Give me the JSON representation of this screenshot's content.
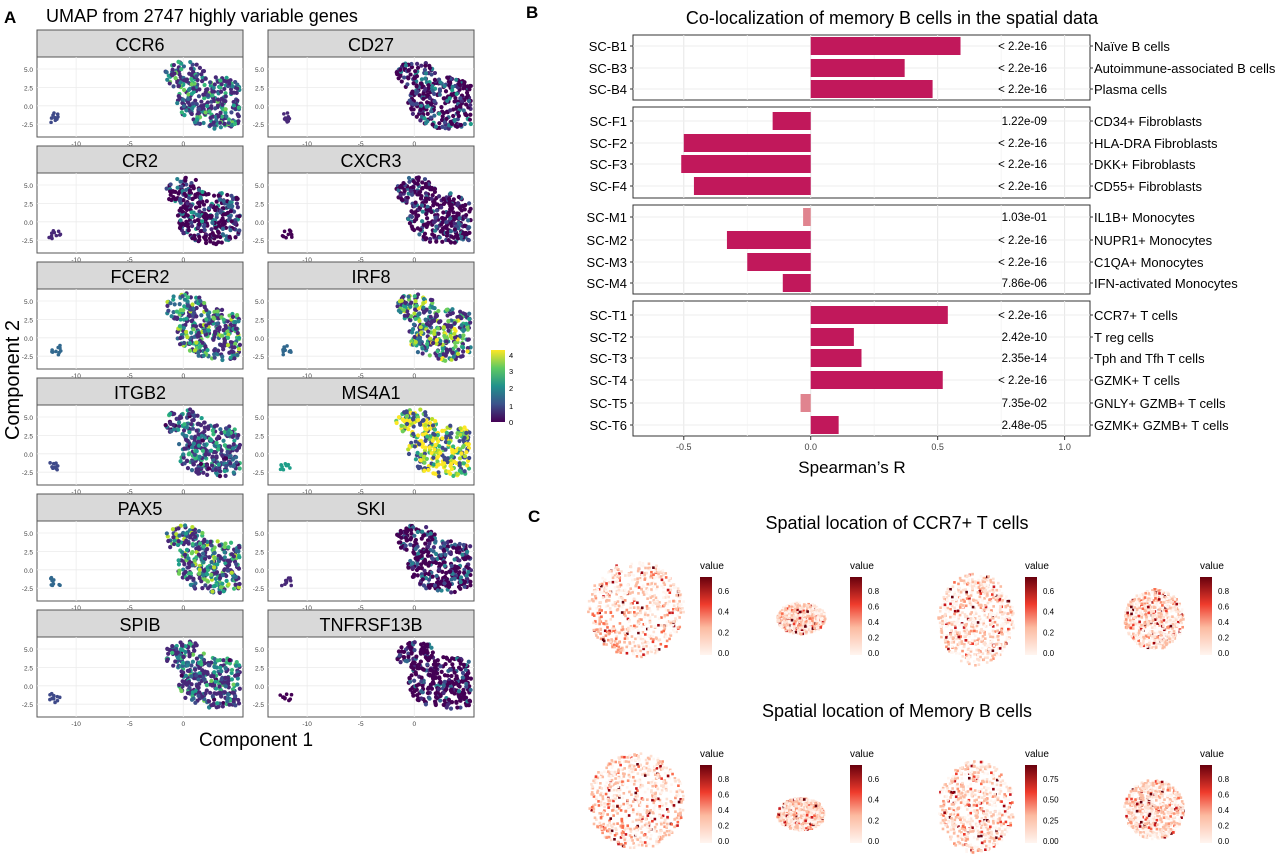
{
  "panel_a": {
    "letter": "A",
    "title": "UMAP from 2747 highly variable genes",
    "xlabel": "Component 1",
    "ylabel": "Component 2",
    "genes": [
      "CCR6",
      "CD27",
      "CR2",
      "CXCR3",
      "FCER2",
      "IRF8",
      "ITGB2",
      "MS4A1",
      "PAX5",
      "SKI",
      "SPIB",
      "TNFRSF13B"
    ],
    "x_ticks": [
      "-10",
      "-5",
      "0"
    ],
    "y_ticks": [
      "5.0",
      "2.5",
      "0.0",
      "-2.5"
    ],
    "colorbar_ticks": [
      "4",
      "3",
      "2",
      "1",
      "0"
    ],
    "gene_mean_expression": {
      "CCR6": 1.8,
      "CD27": 0.9,
      "CR2": 0.9,
      "CXCR3": 0.5,
      "FCER2": 2.2,
      "IRF8": 2.5,
      "ITGB2": 1.5,
      "MS4A1": 3.6,
      "PAX5": 2.3,
      "SKI": 0.7,
      "SPIB": 1.6,
      "TNFRSF13B": 0.5
    },
    "colors": {
      "low": "#440154",
      "mid": "#21918c",
      "high": "#fde725"
    }
  },
  "panel_b": {
    "letter": "B",
    "title": "Co-localization of memory B cells in the spatial data",
    "xlabel": "Spearman’s R",
    "x_ticks": [
      "-0.5",
      "0.0",
      "0.5",
      "1.0"
    ],
    "colors": {
      "bar": "#c1185b",
      "bar_light": "#e0848f"
    }
  },
  "panel_c": {
    "letter": "C",
    "row_titles": [
      "Spatial location of CCR7+ T cells",
      "Spatial location of Memory B cells"
    ],
    "legend_title": "value",
    "legends": [
      [
        [
          "0.6",
          "0.4",
          "0.2",
          "0.0"
        ],
        [
          "0.8",
          "0.6",
          "0.4",
          "0.2",
          "0.0"
        ],
        [
          "0.6",
          "0.4",
          "0.2",
          "0.0"
        ],
        [
          "0.8",
          "0.6",
          "0.4",
          "0.2",
          "0.0"
        ]
      ],
      [
        [
          "0.8",
          "0.6",
          "0.4",
          "0.2",
          "0.0"
        ],
        [
          "0.6",
          "0.4",
          "0.2",
          "0.0"
        ],
        [
          "0.75",
          "0.50",
          "0.25",
          "0.00"
        ],
        [
          "0.8",
          "0.6",
          "0.4",
          "0.2",
          "0.0"
        ]
      ]
    ],
    "colors": {
      "low": "#fff5f0",
      "high": "#67000d"
    }
  },
  "chart_data": [
    {
      "type": "bar",
      "title": "Co-localization of memory B cells in the spatial data",
      "xlabel": "Spearman’s R",
      "xlim": [
        -0.7,
        1.1
      ],
      "orientation": "horizontal",
      "groups": [
        {
          "rows": [
            {
              "id": "SC-B1",
              "label": "Naïve B cells",
              "value": 0.59,
              "p": "< 2.2e-16"
            },
            {
              "id": "SC-B3",
              "label": "Autoimmune-associated B cells",
              "value": 0.37,
              "p": "< 2.2e-16"
            },
            {
              "id": "SC-B4",
              "label": "Plasma cells",
              "value": 0.48,
              "p": "< 2.2e-16"
            }
          ]
        },
        {
          "rows": [
            {
              "id": "SC-F1",
              "label": "CD34+ Fibroblasts",
              "value": -0.15,
              "p": "1.22e-09"
            },
            {
              "id": "SC-F2",
              "label": "HLA-DRA Fibroblasts",
              "value": -0.5,
              "p": "< 2.2e-16"
            },
            {
              "id": "SC-F3",
              "label": "DKK+ Fibroblasts",
              "value": -0.51,
              "p": "< 2.2e-16"
            },
            {
              "id": "SC-F4",
              "label": "CD55+ Fibroblasts",
              "value": -0.46,
              "p": "< 2.2e-16"
            }
          ]
        },
        {
          "rows": [
            {
              "id": "SC-M1",
              "label": "IL1B+ Monocytes",
              "value": -0.03,
              "p": "1.03e-01"
            },
            {
              "id": "SC-M2",
              "label": "NUPR1+ Monocytes",
              "value": -0.33,
              "p": "< 2.2e-16"
            },
            {
              "id": "SC-M3",
              "label": "C1QA+ Monocytes",
              "value": -0.25,
              "p": "< 2.2e-16"
            },
            {
              "id": "SC-M4",
              "label": "IFN-activated Monocytes",
              "value": -0.11,
              "p": "7.86e-06"
            }
          ]
        },
        {
          "rows": [
            {
              "id": "SC-T1",
              "label": "CCR7+ T cells",
              "value": 0.54,
              "p": "< 2.2e-16"
            },
            {
              "id": "SC-T2",
              "label": "T reg cells",
              "value": 0.17,
              "p": "2.42e-10"
            },
            {
              "id": "SC-T3",
              "label": "Tph and Tfh T cells",
              "value": 0.2,
              "p": "2.35e-14"
            },
            {
              "id": "SC-T4",
              "label": "GZMK+ T cells",
              "value": 0.52,
              "p": "< 2.2e-16"
            },
            {
              "id": "SC-T5",
              "label": "GNLY+ GZMB+ T cells",
              "value": -0.04,
              "p": "7.35e-02"
            },
            {
              "id": "SC-T6",
              "label": "GZMK+ GZMB+ T cells",
              "value": 0.11,
              "p": "2.48e-05"
            }
          ]
        }
      ]
    },
    {
      "type": "scatter",
      "title": "UMAP from 2747 highly variable genes",
      "xlabel": "Component 1",
      "ylabel": "Component 2",
      "xlim": [
        -14,
        5
      ],
      "ylim": [
        -4,
        6
      ],
      "colorbar_range": [
        0,
        4
      ],
      "facets": [
        "CCR6",
        "CD27",
        "CR2",
        "CXCR3",
        "FCER2",
        "IRF8",
        "ITGB2",
        "MS4A1",
        "PAX5",
        "SKI",
        "SPIB",
        "TNFRSF13B"
      ]
    }
  ]
}
